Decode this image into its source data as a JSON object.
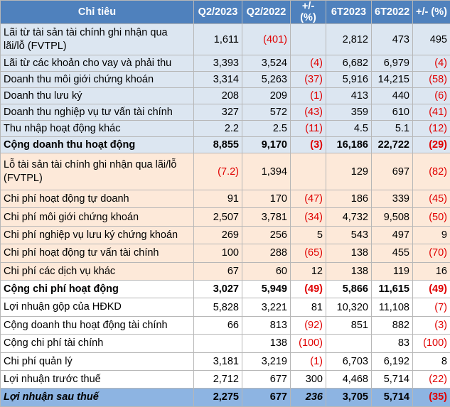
{
  "table": {
    "header": [
      "Chỉ tiêu",
      "Q2/2023",
      "Q2/2022",
      "+/- (%)",
      "6T2023",
      "6T2022",
      "+/- (%)"
    ],
    "rows": [
      [
        "Lãi từ tài sản tài chính ghi nhận qua lãi/lỗ (FVTPL)",
        "1,611",
        "(401)",
        null,
        "2,812",
        "473",
        "495"
      ],
      [
        "Lãi từ các khoản cho vay và phải thu",
        "3,393",
        "3,524",
        "(4)",
        "6,682",
        "6,979",
        "(4)"
      ],
      [
        "Doanh thu môi giới chứng khoán",
        "3,314",
        "5,263",
        "(37)",
        "5,916",
        "14,215",
        "(58)"
      ],
      [
        "Doanh thu lưu ký",
        "208",
        "209",
        "(1)",
        "413",
        "440",
        "(6)"
      ],
      [
        "Doanh thu nghiệp vụ tư vấn tài chính",
        "327",
        "572",
        "(43)",
        "359",
        "610",
        "(41)"
      ],
      [
        "Thu nhập hoạt động khác",
        "2.2",
        "2.5",
        "(11)",
        "4.5",
        "5.1",
        "(12)"
      ],
      [
        "Cộng doanh thu hoạt động",
        "8,855",
        "9,170",
        "(3)",
        "16,186",
        "22,722",
        "(29)"
      ],
      [
        "Lỗ tài sản tài chính ghi nhận qua lãi/lỗ (FVTPL)",
        "(7.2)",
        "1,394",
        null,
        "129",
        "697",
        "(82)"
      ],
      [
        "Chi phí hoạt động tự doanh",
        "91",
        "170",
        "(47)",
        "186",
        "339",
        "(45)"
      ],
      [
        "Chi phí môi giới chứng khoán",
        "2,507",
        "3,781",
        "(34)",
        "4,732",
        "9,508",
        "(50)"
      ],
      [
        "Chi phí nghiệp vụ lưu ký chứng khoán",
        "269",
        "256",
        "5",
        "543",
        "497",
        "9"
      ],
      [
        "Chi phí hoạt động tư vấn tài chính",
        "100",
        "288",
        "(65)",
        "138",
        "455",
        "(70)"
      ],
      [
        "Chi phí các dịch vụ khác",
        "67",
        "60",
        "12",
        "138",
        "119",
        "16"
      ],
      [
        "Cộng chi phí hoạt động",
        "3,027",
        "5,949",
        "(49)",
        "5,866",
        "11,615",
        "(49)"
      ],
      [
        "Lợi nhuận gộp của HĐKD",
        "5,828",
        "3,221",
        "81",
        "10,320",
        "11,108",
        "(7)"
      ],
      [
        "Cộng doanh thu hoạt động tài chính",
        "66",
        "813",
        "(92)",
        "851",
        "882",
        "(3)"
      ],
      [
        "Cộng chi phí tài chính",
        null,
        "138",
        "(100)",
        null,
        "83",
        "(100)"
      ],
      [
        "Chi phí quản lý",
        "3,181",
        "3,219",
        "(1)",
        "6,703",
        "6,192",
        "8"
      ],
      [
        "Lợi nhuận trước thuế",
        "2,712",
        "677",
        "300",
        "4,468",
        "5,714",
        "(22)"
      ],
      [
        "Lợi nhuận sau thuế",
        "2,275",
        "677",
        "236",
        "3,705",
        "5,714",
        "(35)"
      ]
    ]
  }
}
